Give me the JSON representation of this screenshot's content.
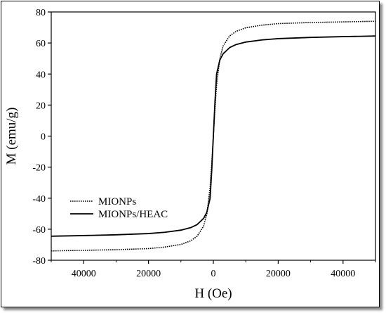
{
  "chart_data": {
    "type": "line",
    "title": "",
    "xlabel": "H (Oe)",
    "ylabel": "M (emu/g)",
    "xlim": [
      -50000,
      50000
    ],
    "ylim": [
      -80,
      80
    ],
    "x_tick_values": [
      -40000,
      -20000,
      0,
      20000,
      40000
    ],
    "x_tick_labels": [
      "40000",
      "20000",
      "0",
      "20000",
      "40000"
    ],
    "y_ticks": [
      -80,
      -60,
      -40,
      -20,
      0,
      20,
      40,
      60,
      80
    ],
    "legend_position": "lower-left",
    "series": [
      {
        "name": "MIONPs",
        "style": "dotted",
        "color": "#000000",
        "x": [
          -50000,
          -40000,
          -30000,
          -20000,
          -15000,
          -10000,
          -7000,
          -5000,
          -3000,
          -2000,
          -1000,
          -500,
          0,
          500,
          1000,
          2000,
          3000,
          5000,
          7000,
          10000,
          15000,
          20000,
          30000,
          40000,
          50000
        ],
        "y": [
          -74,
          -73.6,
          -73.2,
          -72.5,
          -71.5,
          -69.8,
          -67.5,
          -64.5,
          -58,
          -50,
          -33,
          -18,
          0,
          18,
          33,
          50,
          58,
          64.5,
          67.5,
          69.8,
          71.5,
          72.5,
          73.2,
          73.6,
          74
        ]
      },
      {
        "name": "MIONPs/HEAC",
        "style": "solid",
        "color": "#000000",
        "x": [
          -50000,
          -40000,
          -30000,
          -20000,
          -15000,
          -10000,
          -7000,
          -5000,
          -3000,
          -2000,
          -1000,
          -500,
          0,
          500,
          1000,
          2000,
          3000,
          5000,
          7000,
          10000,
          15000,
          20000,
          30000,
          40000,
          50000
        ],
        "y": [
          -64.5,
          -64.1,
          -63.6,
          -62.8,
          -62,
          -60.6,
          -59,
          -57,
          -53,
          -49,
          -40,
          -22,
          0,
          22,
          40,
          49,
          53,
          57,
          59,
          60.6,
          62,
          62.8,
          63.6,
          64.1,
          64.5
        ]
      }
    ]
  }
}
